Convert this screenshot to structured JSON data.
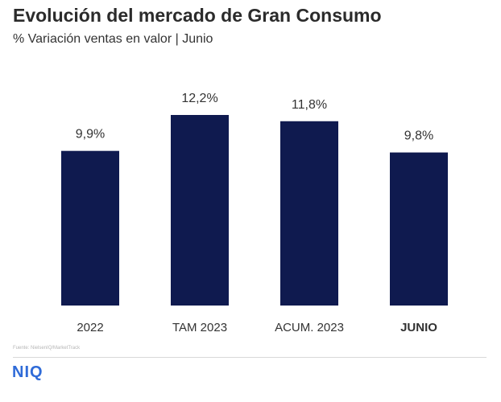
{
  "header": {
    "title": "Evolución del mercado de Gran Consumo",
    "subtitle": "% Variación ventas en valor | Junio"
  },
  "footer": {
    "source": "Fuente: NielsenIQ/MarketTrack",
    "logo": "NIQ"
  },
  "colors": {
    "bar": "#0f1a4f",
    "logo": "#2f6bd8",
    "text": "#333333"
  },
  "chart_data": {
    "type": "bar",
    "title": "Evolución del mercado de Gran Consumo",
    "subtitle": "% Variación ventas en valor | Junio",
    "categories": [
      "2022",
      "TAM 2023",
      "ACUM. 2023",
      "JUNIO"
    ],
    "values": [
      9.9,
      12.2,
      11.8,
      9.8
    ],
    "value_labels": [
      "9,9%",
      "12,2%",
      "11,8%",
      "9,8%"
    ],
    "bold_categories": [
      "JUNIO"
    ],
    "ylim": [
      0,
      12.2
    ],
    "grid": false,
    "legend": "none"
  }
}
